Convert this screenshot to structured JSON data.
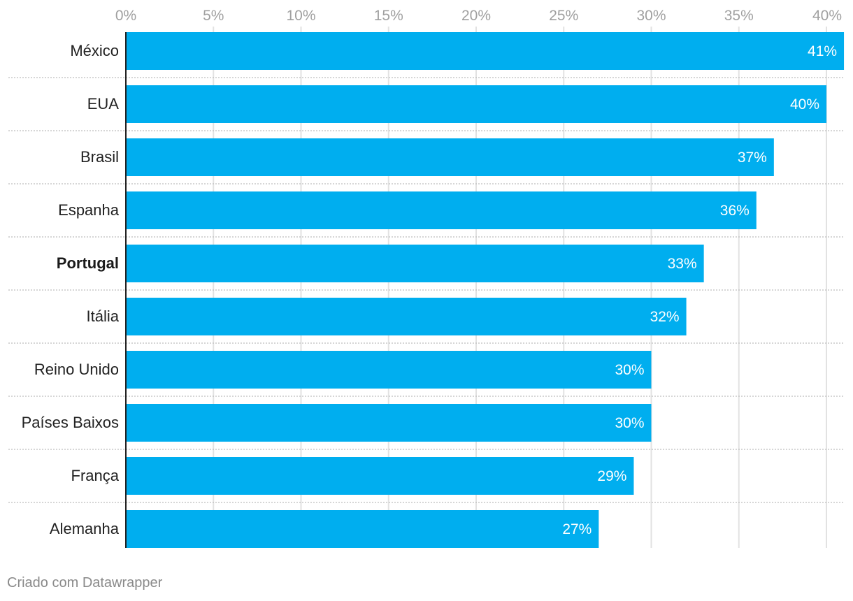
{
  "chart_data": {
    "type": "bar",
    "orientation": "horizontal",
    "categories": [
      "México",
      "EUA",
      "Brasil",
      "Espanha",
      "Portugal",
      "Itália",
      "Reino Unido",
      "Países Baixos",
      "França",
      "Alemanha"
    ],
    "values": [
      41,
      40,
      37,
      36,
      33,
      32,
      30,
      30,
      29,
      27
    ],
    "value_labels": [
      "41%",
      "40%",
      "37%",
      "36%",
      "33%",
      "32%",
      "30%",
      "30%",
      "29%",
      "27%"
    ],
    "highlighted_category": "Portugal",
    "xlim": [
      0,
      40
    ],
    "x_ticks": [
      0,
      5,
      10,
      15,
      20,
      25,
      30,
      35,
      40
    ],
    "x_tick_labels": [
      "0%",
      "5%",
      "10%",
      "15%",
      "20%",
      "25%",
      "30%",
      "35%",
      "40%"
    ],
    "axis_position": "top",
    "grid": true,
    "title": "",
    "xlabel": "",
    "ylabel": "",
    "bar_color": "#00aeef"
  },
  "footer": {
    "credit": "Criado com Datawrapper"
  }
}
